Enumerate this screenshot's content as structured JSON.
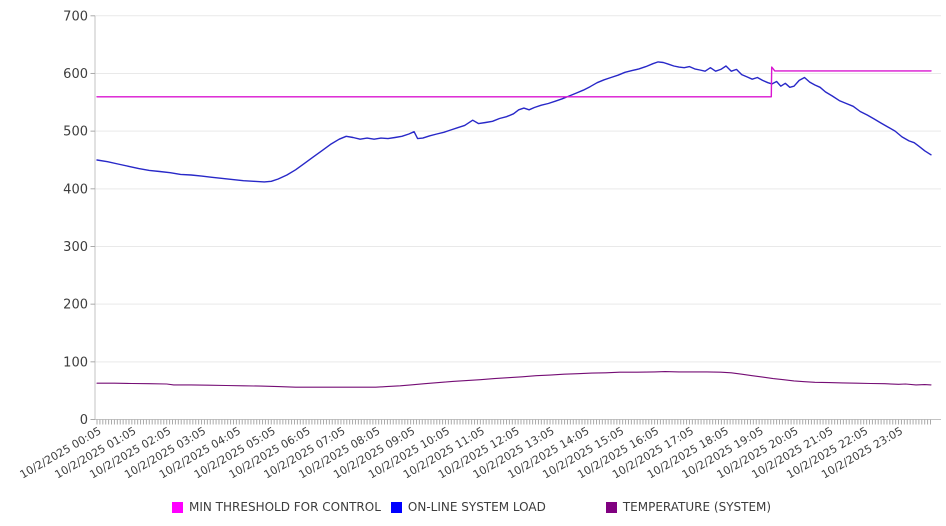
{
  "chart_data": {
    "type": "line",
    "title": "",
    "x_unit": "hours_from_first_label",
    "x_axis": {
      "labels": [
        "10/2/2025 00:05",
        "10/2/2025 01:05",
        "10/2/2025 02:05",
        "10/2/2025 03:05",
        "10/2/2025 04:05",
        "10/2/2025 05:05",
        "10/2/2025 06:05",
        "10/2/2025 07:05",
        "10/2/2025 08:05",
        "10/2/2025 09:05",
        "10/2/2025 10:05",
        "10/2/2025 11:05",
        "10/2/2025 12:05",
        "10/2/2025 13:05",
        "10/2/2025 14:05",
        "10/2/2025 15:05",
        "10/2/2025 16:05",
        "10/2/2025 17:05",
        "10/2/2025 18:05",
        "10/2/2025 19:05",
        "10/2/2025 20:05",
        "10/2/2025 21:05",
        "10/2/2025 22:05",
        "10/2/2025 23:05"
      ],
      "minor_tick_interval_minutes": 5
    },
    "y_axis": {
      "min": 0,
      "max": 700,
      "step": 100,
      "tick_labels": [
        "0",
        "100",
        "200",
        "300",
        "400",
        "500",
        "600",
        "700"
      ]
    },
    "grid": "horizontal",
    "legend_position": "bottom",
    "series": [
      {
        "name": "MIN THRESHOLD FOR CONTROL",
        "color": "#d916d0",
        "legend_color": "#ff00ff",
        "points": [
          [
            0,
            559.5
          ],
          [
            19.35,
            559.5
          ],
          [
            19.36,
            611
          ],
          [
            19.45,
            604.5
          ],
          [
            23.93,
            604.5
          ]
        ]
      },
      {
        "name": "ON-LINE SYSTEM LOAD",
        "color": "#2828c8",
        "legend_color": "#0000ff",
        "points": [
          [
            0,
            450
          ],
          [
            0.3,
            447
          ],
          [
            0.6,
            443
          ],
          [
            0.9,
            439
          ],
          [
            1.2,
            435
          ],
          [
            1.5,
            432
          ],
          [
            1.8,
            430
          ],
          [
            2.1,
            428
          ],
          [
            2.4,
            425
          ],
          [
            2.7,
            424
          ],
          [
            3.0,
            422
          ],
          [
            3.3,
            420
          ],
          [
            3.6,
            418
          ],
          [
            3.9,
            416
          ],
          [
            4.2,
            414
          ],
          [
            4.5,
            413
          ],
          [
            4.8,
            412
          ],
          [
            5.0,
            413
          ],
          [
            5.2,
            417
          ],
          [
            5.45,
            424
          ],
          [
            5.7,
            433
          ],
          [
            5.95,
            444
          ],
          [
            6.2,
            455
          ],
          [
            6.45,
            466
          ],
          [
            6.7,
            477
          ],
          [
            6.95,
            486
          ],
          [
            7.15,
            491
          ],
          [
            7.35,
            489
          ],
          [
            7.55,
            486
          ],
          [
            7.75,
            488
          ],
          [
            7.95,
            486
          ],
          [
            8.15,
            488
          ],
          [
            8.35,
            487
          ],
          [
            8.55,
            489
          ],
          [
            8.75,
            491
          ],
          [
            8.95,
            495
          ],
          [
            9.1,
            499
          ],
          [
            9.2,
            487
          ],
          [
            9.35,
            488
          ],
          [
            9.55,
            492
          ],
          [
            9.75,
            495
          ],
          [
            9.95,
            498
          ],
          [
            10.15,
            502
          ],
          [
            10.35,
            506
          ],
          [
            10.55,
            510
          ],
          [
            10.78,
            519
          ],
          [
            10.95,
            513
          ],
          [
            11.15,
            515
          ],
          [
            11.35,
            517
          ],
          [
            11.55,
            522
          ],
          [
            11.75,
            525
          ],
          [
            11.95,
            530
          ],
          [
            12.1,
            537
          ],
          [
            12.25,
            540
          ],
          [
            12.4,
            537
          ],
          [
            12.55,
            541
          ],
          [
            12.75,
            545
          ],
          [
            12.95,
            548
          ],
          [
            13.15,
            552
          ],
          [
            13.35,
            556
          ],
          [
            13.55,
            561
          ],
          [
            13.75,
            566
          ],
          [
            13.95,
            571
          ],
          [
            14.15,
            577
          ],
          [
            14.35,
            584
          ],
          [
            14.55,
            589
          ],
          [
            14.75,
            593
          ],
          [
            14.95,
            597
          ],
          [
            15.15,
            602
          ],
          [
            15.35,
            605
          ],
          [
            15.55,
            608
          ],
          [
            15.75,
            612
          ],
          [
            15.95,
            617
          ],
          [
            16.1,
            620
          ],
          [
            16.25,
            619
          ],
          [
            16.4,
            616
          ],
          [
            16.55,
            613
          ],
          [
            16.7,
            611
          ],
          [
            16.85,
            610
          ],
          [
            17.0,
            612
          ],
          [
            17.15,
            608
          ],
          [
            17.3,
            606
          ],
          [
            17.45,
            604
          ],
          [
            17.6,
            610
          ],
          [
            17.75,
            604
          ],
          [
            17.9,
            607
          ],
          [
            18.05,
            613
          ],
          [
            18.2,
            604
          ],
          [
            18.35,
            607
          ],
          [
            18.5,
            598
          ],
          [
            18.65,
            594
          ],
          [
            18.8,
            590
          ],
          [
            18.95,
            593
          ],
          [
            19.1,
            588
          ],
          [
            19.25,
            584
          ],
          [
            19.37,
            582
          ],
          [
            19.5,
            586
          ],
          [
            19.62,
            578
          ],
          [
            19.75,
            583
          ],
          [
            19.88,
            576
          ],
          [
            20.0,
            578
          ],
          [
            20.15,
            588
          ],
          [
            20.3,
            593
          ],
          [
            20.45,
            585
          ],
          [
            20.6,
            580
          ],
          [
            20.75,
            576
          ],
          [
            20.9,
            568
          ],
          [
            21.1,
            561
          ],
          [
            21.3,
            553
          ],
          [
            21.5,
            548
          ],
          [
            21.7,
            543
          ],
          [
            21.9,
            534
          ],
          [
            22.1,
            528
          ],
          [
            22.3,
            521
          ],
          [
            22.5,
            514
          ],
          [
            22.7,
            507
          ],
          [
            22.9,
            500
          ],
          [
            23.1,
            490
          ],
          [
            23.3,
            483
          ],
          [
            23.45,
            480
          ],
          [
            23.6,
            473
          ],
          [
            23.75,
            466
          ],
          [
            23.93,
            459
          ]
        ]
      },
      {
        "name": "TEMPERATURE (SYSTEM)",
        "color": "#750d75",
        "legend_color": "#800080",
        "points": [
          [
            0,
            63
          ],
          [
            0.5,
            63
          ],
          [
            1,
            62.5
          ],
          [
            1.5,
            62
          ],
          [
            2,
            61.5
          ],
          [
            2.2,
            60
          ],
          [
            2.7,
            60
          ],
          [
            3.2,
            59.5
          ],
          [
            3.7,
            59
          ],
          [
            4.2,
            58.5
          ],
          [
            4.7,
            58
          ],
          [
            5.2,
            57
          ],
          [
            5.7,
            56
          ],
          [
            6.5,
            56
          ],
          [
            7.3,
            56
          ],
          [
            8.0,
            56
          ],
          [
            8.3,
            57
          ],
          [
            8.7,
            58.5
          ],
          [
            9.0,
            60
          ],
          [
            9.4,
            62
          ],
          [
            9.8,
            64
          ],
          [
            10.2,
            66
          ],
          [
            10.6,
            67.5
          ],
          [
            11.0,
            69
          ],
          [
            11.4,
            71
          ],
          [
            11.8,
            72.5
          ],
          [
            12.2,
            74
          ],
          [
            12.6,
            76
          ],
          [
            13.0,
            77
          ],
          [
            13.4,
            78.5
          ],
          [
            13.8,
            79.5
          ],
          [
            14.2,
            80.5
          ],
          [
            14.6,
            81
          ],
          [
            15.0,
            82
          ],
          [
            15.5,
            82
          ],
          [
            16.0,
            82.5
          ],
          [
            16.3,
            83
          ],
          [
            16.7,
            82.5
          ],
          [
            17.1,
            82.5
          ],
          [
            17.5,
            82.5
          ],
          [
            17.9,
            82
          ],
          [
            18.2,
            81
          ],
          [
            18.5,
            78.5
          ],
          [
            18.8,
            76
          ],
          [
            19.1,
            73.5
          ],
          [
            19.4,
            71
          ],
          [
            19.7,
            69
          ],
          [
            20.0,
            67
          ],
          [
            20.3,
            65.5
          ],
          [
            20.6,
            64.5
          ],
          [
            21.0,
            64
          ],
          [
            21.4,
            63.5
          ],
          [
            21.8,
            63
          ],
          [
            22.2,
            62.5
          ],
          [
            22.6,
            62
          ],
          [
            23.0,
            61
          ],
          [
            23.2,
            61.5
          ],
          [
            23.5,
            60
          ],
          [
            23.75,
            60.5
          ],
          [
            23.93,
            60
          ]
        ]
      }
    ],
    "style": {
      "grid_color": "#e9e9e9",
      "axis_color": "#c3c3c3",
      "tick_color": "#a9a9a9",
      "label_color": "#3d3d3d",
      "background": "#ffffff"
    }
  }
}
